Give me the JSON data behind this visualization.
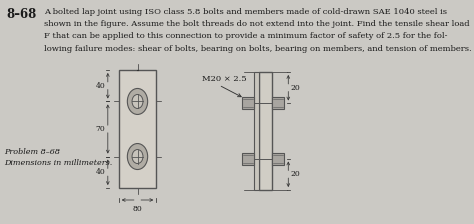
{
  "problem_number": "8–68",
  "problem_text_lines": [
    "A bolted lap joint using ISO class 5.8 bolts and members made of cold-drawn SAE 1040 steel is",
    "shown in the figure. Assume the bolt threads do not extend into the joint. Find the tensile shear load",
    "F that can be applied to this connection to provide a minimum factor of safety of 2.5 for the fol-",
    "lowing failure modes: shear of bolts, bearing on bolts, bearing on members, and tension of members."
  ],
  "caption_line1": "Problem 8–68",
  "caption_line2": "Dimensions in millimeters.",
  "dim_40_top": "40",
  "dim_70": "70",
  "dim_40_bot": "40",
  "dim_80": "80",
  "dim_20_top": "20",
  "dim_20_bot": "20",
  "bolt_label": "M20 × 2.5",
  "bg_color": "#cbc9c4",
  "text_color": "#1a1a1a",
  "plate_face_color": "#d4d0c8",
  "plate_edge_color": "#555555",
  "bolt_outer_color": "#b0aca4",
  "bolt_inner_color": "#c8c4bc",
  "line_color": "#333333"
}
